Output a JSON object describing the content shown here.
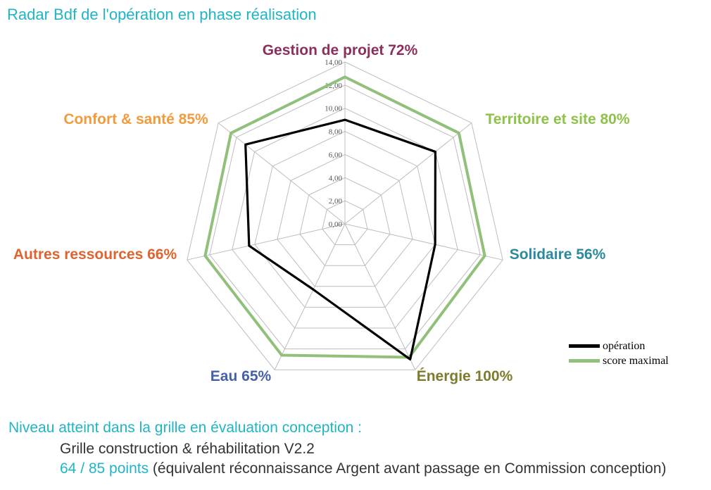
{
  "title": "Radar Bdf de l'opération en phase réalisation",
  "chart_data": {
    "type": "radar",
    "axes": [
      {
        "label": "Gestion de projet 72%",
        "color": "#8b2f5c"
      },
      {
        "label": "Territoire et site 80%",
        "color": "#8ec24a"
      },
      {
        "label": "Solidaire 56%",
        "color": "#2b8a9c"
      },
      {
        "label": "Énergie 100%",
        "color": "#7d7b2c"
      },
      {
        "label": "Eau 65%",
        "color": "#4661a8"
      },
      {
        "label": "Autres ressources 66%",
        "color": "#e0632f"
      },
      {
        "label": "Confort & santé 85%",
        "color": "#f39a3d"
      }
    ],
    "ticks": [
      "0,00",
      "2,00",
      "4,00",
      "6,00",
      "8,00",
      "10,00",
      "12,00",
      "14,00"
    ],
    "rmax": 14,
    "series": [
      {
        "name": "opération",
        "color": "#000000",
        "values": [
          9.0,
          10.0,
          8.0,
          13.0,
          6.3,
          8.5,
          11.0
        ]
      },
      {
        "name": "score maximal",
        "color": "#90c07a",
        "values": [
          12.7,
          12.6,
          12.4,
          12.8,
          12.6,
          12.4,
          12.6
        ]
      }
    ]
  },
  "footer": {
    "heading": "Niveau atteint dans la grille en évaluation conception :",
    "grid_line": "Grille construction & réhabilitation V2.2",
    "points": "64 / 85 points",
    "note": " (équivalent réconnaissance Argent avant passage en Commission conception)"
  }
}
